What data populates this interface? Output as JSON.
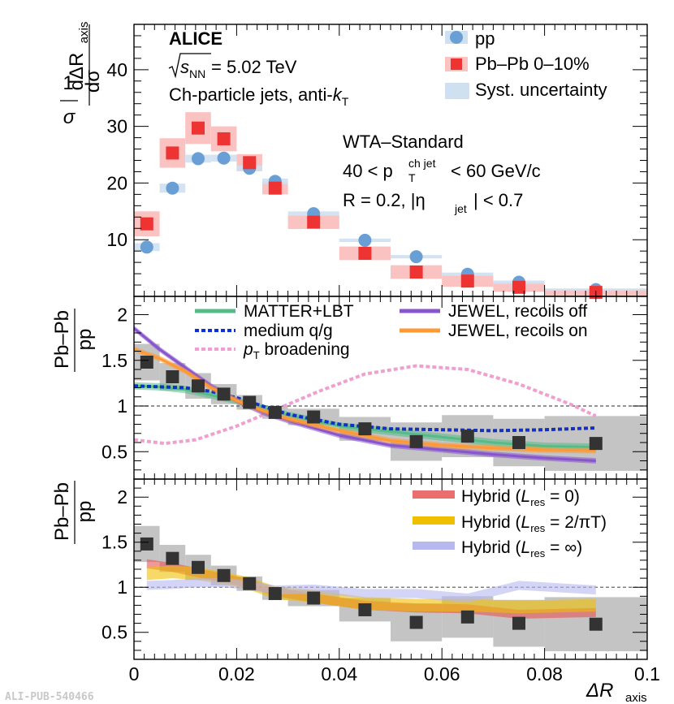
{
  "figure": {
    "experiment": "ALICE",
    "energy_label": "s",
    "energy_sub": "NN",
    "energy_value": " = 5.02 TeV",
    "jet_label_a": "Ch-particle jets, anti-",
    "jet_label_k": "k",
    "jet_label_t": "T",
    "pub_id": "ALI-PUB-540466"
  },
  "chart_data": [
    {
      "type": "scatter",
      "panel": "top",
      "ylabel_frac_num": "1",
      "ylabel_frac_den": "σ",
      "ylabel_num": "dσ",
      "ylabel_den": "dΔR",
      "ylabel_den_sub": "axis",
      "ylim": [
        0,
        48
      ],
      "xlim": [
        0,
        0.1
      ],
      "yticks": [
        "10",
        "20",
        "30",
        "40"
      ],
      "yticks_values": [
        10,
        20,
        30,
        40
      ],
      "info_line1": "WTA–Standard",
      "info_line2_a": "40 < p",
      "info_line2_sup": "ch jet",
      "info_line2_sub": "T",
      "info_line2_b": " < 60 GeV/c",
      "info_line3": "R = 0.2,   |η",
      "info_line3_sub": "jet",
      "info_line3_b": "| < 0.7",
      "legend": {
        "pp": "pp",
        "pbpb": "Pb–Pb 0–10%",
        "syst": "Syst. uncertainty"
      },
      "bins": [
        [
          0,
          0.005
        ],
        [
          0.005,
          0.01
        ],
        [
          0.01,
          0.015
        ],
        [
          0.015,
          0.02
        ],
        [
          0.02,
          0.025
        ],
        [
          0.025,
          0.03
        ],
        [
          0.03,
          0.04
        ],
        [
          0.04,
          0.05
        ],
        [
          0.05,
          0.06
        ],
        [
          0.06,
          0.07
        ],
        [
          0.07,
          0.08
        ],
        [
          0.08,
          0.1
        ]
      ],
      "x": [
        0.0025,
        0.0075,
        0.0125,
        0.0175,
        0.0225,
        0.0275,
        0.035,
        0.045,
        0.055,
        0.065,
        0.075,
        0.09
      ],
      "series": [
        {
          "name": "pp",
          "values": [
            8.7,
            19.1,
            24.3,
            24.4,
            22.6,
            20.3,
            14.6,
            9.9,
            7.0,
            3.9,
            2.5,
            1.2
          ],
          "syst": [
            0.7,
            0.8,
            0.7,
            0.6,
            0.5,
            0.5,
            0.4,
            0.3,
            0.3,
            0.3,
            0.3,
            0.2
          ]
        },
        {
          "name": "Pb–Pb 0–10%",
          "values": [
            12.8,
            25.3,
            29.7,
            27.8,
            23.6,
            19.1,
            13.1,
            7.6,
            4.3,
            2.7,
            1.6,
            0.7
          ],
          "syst": [
            2.2,
            2.6,
            2.8,
            2.2,
            1.5,
            1.1,
            1.2,
            1.2,
            1.2,
            1.0,
            0.8,
            0.6
          ]
        }
      ]
    },
    {
      "type": "line",
      "panel": "middle",
      "ylabel_num": "Pb–Pb",
      "ylabel_den": "pp",
      "ylim": [
        0.2,
        2.2
      ],
      "xlim": [
        0,
        0.1
      ],
      "yticks": [
        "0.5",
        "1",
        "1.5",
        "2"
      ],
      "yticks_values": [
        0.5,
        1,
        1.5,
        2
      ],
      "legend": {
        "matter": "MATTER+LBT",
        "medium_a": "medium q/g",
        "pt_a": "p",
        "pt_sub": "T",
        "pt_b": " broadening",
        "jewel_off": "JEWEL, recoils off",
        "jewel_on": "JEWEL, recoils on"
      },
      "ratio_values": [
        1.48,
        1.32,
        1.22,
        1.13,
        1.04,
        0.93,
        0.88,
        0.75,
        0.61,
        0.67,
        0.6,
        0.59
      ],
      "ratio_syst": [
        0.2,
        0.15,
        0.14,
        0.11,
        0.08,
        0.07,
        0.09,
        0.13,
        0.21,
        0.23,
        0.26,
        0.3
      ],
      "models": [
        {
          "name": "MATTER+LBT",
          "color": "#55bb88",
          "x": [
            0,
            0.005,
            0.01,
            0.015,
            0.02,
            0.025,
            0.03,
            0.04,
            0.05,
            0.06,
            0.07,
            0.08,
            0.09
          ],
          "values": [
            1.22,
            1.21,
            1.18,
            1.12,
            1.06,
            0.98,
            0.9,
            0.78,
            0.72,
            0.66,
            0.6,
            0.56,
            0.55
          ],
          "band": 0.04
        },
        {
          "name": "medium q/g",
          "color": "#1030c8",
          "x": [
            0,
            0.005,
            0.01,
            0.015,
            0.02,
            0.025,
            0.03,
            0.04,
            0.05,
            0.06,
            0.07,
            0.08,
            0.09
          ],
          "values": [
            1.22,
            1.21,
            1.2,
            1.16,
            1.09,
            1.0,
            0.91,
            0.8,
            0.75,
            0.74,
            0.73,
            0.74,
            0.76
          ],
          "band": 0
        },
        {
          "name": "pT broadening",
          "color": "#f0a0d0",
          "x": [
            0.0,
            0.006,
            0.012,
            0.02,
            0.028,
            0.036,
            0.045,
            0.055,
            0.065,
            0.075,
            0.085,
            0.09
          ],
          "values": [
            0.63,
            0.59,
            0.63,
            0.78,
            0.97,
            1.16,
            1.35,
            1.44,
            1.4,
            1.24,
            1.02,
            0.89
          ],
          "band": 0
        },
        {
          "name": "JEWEL, recoils off",
          "color": "#8855cc",
          "x": [
            0,
            0.005,
            0.01,
            0.015,
            0.02,
            0.025,
            0.03,
            0.04,
            0.05,
            0.06,
            0.07,
            0.08,
            0.09
          ],
          "values": [
            1.85,
            1.62,
            1.42,
            1.22,
            1.06,
            0.93,
            0.84,
            0.68,
            0.57,
            0.52,
            0.47,
            0.43,
            0.4
          ],
          "band": 0.03
        },
        {
          "name": "JEWEL, recoils on",
          "color": "#ff9933",
          "x": [
            0,
            0.005,
            0.01,
            0.015,
            0.02,
            0.025,
            0.03,
            0.04,
            0.05,
            0.06,
            0.07,
            0.08,
            0.09
          ],
          "values": [
            1.62,
            1.52,
            1.38,
            1.2,
            1.06,
            0.95,
            0.86,
            0.73,
            0.62,
            0.57,
            0.54,
            0.52,
            0.51
          ],
          "band": 0.03
        }
      ]
    },
    {
      "type": "line",
      "panel": "bottom",
      "ylabel_num": "Pb–Pb",
      "ylabel_den": "pp",
      "xlabel": "ΔR",
      "xlabel_sub": "axis",
      "ylim": [
        0.2,
        2.2
      ],
      "xlim": [
        0,
        0.1
      ],
      "xticks": [
        "0",
        "0.02",
        "0.04",
        "0.06",
        "0.08",
        "0.1"
      ],
      "xticks_values": [
        0,
        0.02,
        0.04,
        0.06,
        0.08,
        0.1
      ],
      "yticks": [
        "0.5",
        "1",
        "1.5",
        "2"
      ],
      "yticks_values": [
        0.5,
        1,
        1.5,
        2
      ],
      "legend": {
        "h0_a": "Hybrid (",
        "h0_L": "L",
        "h0_sub": "res",
        "h0_b": " = 0)",
        "h2_a": "Hybrid (",
        "h2_L": "L",
        "h2_sub": "res",
        "h2_b": " = 2/πT)",
        "hinf_a": "Hybrid (",
        "hinf_L": "L",
        "hinf_sub": "res",
        "hinf_b": " = ∞)"
      },
      "ratio_values": [
        1.48,
        1.32,
        1.22,
        1.13,
        1.04,
        0.93,
        0.88,
        0.75,
        0.61,
        0.67,
        0.6,
        0.59
      ],
      "ratio_syst": [
        0.2,
        0.15,
        0.14,
        0.11,
        0.08,
        0.07,
        0.09,
        0.13,
        0.21,
        0.23,
        0.26,
        0.3
      ],
      "models": [
        {
          "name": "Hybrid (Lres = 0)",
          "color": "#e85555",
          "x": [
            0.0025,
            0.0075,
            0.0125,
            0.0175,
            0.0225,
            0.0275,
            0.035,
            0.045,
            0.055,
            0.065,
            0.075,
            0.09
          ],
          "values": [
            1.26,
            1.22,
            1.16,
            1.1,
            1.04,
            0.95,
            0.88,
            0.8,
            0.77,
            0.76,
            0.7,
            0.72
          ],
          "band": 0.05
        },
        {
          "name": "Hybrid (Lres = 2/πT)",
          "color": "#f0c000",
          "x": [
            0.0025,
            0.0075,
            0.0125,
            0.0175,
            0.0225,
            0.0275,
            0.035,
            0.045,
            0.055,
            0.065,
            0.075,
            0.09
          ],
          "values": [
            1.15,
            1.17,
            1.15,
            1.1,
            1.04,
            0.94,
            0.9,
            0.82,
            0.8,
            0.8,
            0.78,
            0.8
          ],
          "band": 0.07
        },
        {
          "name": "Hybrid (Lres = ∞)",
          "color": "#b8b8f0",
          "x": [
            0.0025,
            0.0075,
            0.0125,
            0.0175,
            0.0225,
            0.0275,
            0.035,
            0.045,
            0.055,
            0.065,
            0.075,
            0.09
          ],
          "values": [
            1.02,
            1.03,
            1.05,
            1.05,
            1.02,
            0.97,
            0.98,
            0.93,
            0.93,
            0.88,
            1.02,
            0.97
          ],
          "band": 0.05
        }
      ]
    }
  ]
}
